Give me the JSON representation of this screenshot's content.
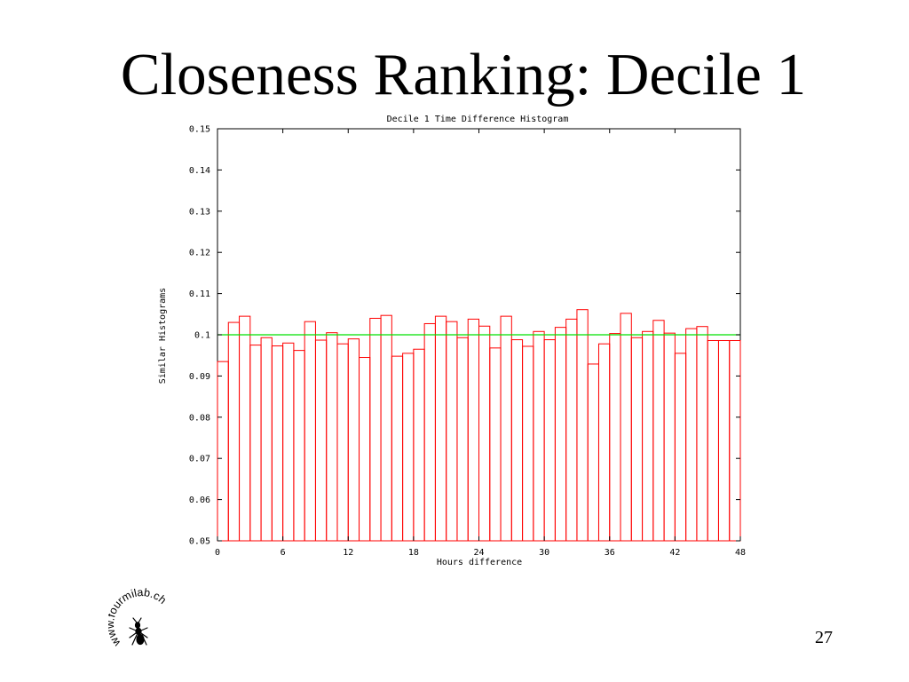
{
  "slide": {
    "title": "Closeness Ranking: Decile 1",
    "page_number": "27",
    "logo_text": "www.fourmilab.ch"
  },
  "chart_data": {
    "type": "bar",
    "title": "Decile 1 Time Difference Histogram",
    "xlabel": "Hours difference",
    "ylabel": "Similar Histograms",
    "xlim": [
      0,
      48
    ],
    "ylim": [
      0.05,
      0.15
    ],
    "x_ticks": [
      0,
      6,
      12,
      18,
      24,
      30,
      36,
      42,
      48
    ],
    "x_tick_labels": [
      "0",
      "6",
      "12",
      "18",
      "24",
      "30",
      "36",
      "42",
      "48"
    ],
    "y_ticks": [
      0.05,
      0.06,
      0.07,
      0.08,
      0.09,
      0.1,
      0.11,
      0.12,
      0.13,
      0.14,
      0.15
    ],
    "y_tick_labels": [
      "0.05",
      "0.06",
      "0.07",
      "0.08",
      "0.09",
      "0.1",
      "0.11",
      "0.12",
      "0.13",
      "0.14",
      "0.15"
    ],
    "bin_width": 1,
    "bins_start": [
      0,
      1,
      2,
      3,
      4,
      5,
      6,
      7,
      8,
      9,
      10,
      11,
      12,
      13,
      14,
      15,
      16,
      17,
      18,
      19,
      20,
      21,
      22,
      23,
      24,
      25,
      26,
      27,
      28,
      29,
      30,
      31,
      32,
      33,
      34,
      35,
      36,
      37,
      38,
      39,
      40,
      41,
      42,
      43,
      44,
      45,
      46,
      47
    ],
    "values": [
      0.0935,
      0.103,
      0.1045,
      0.0975,
      0.0993,
      0.0973,
      0.098,
      0.0962,
      0.1032,
      0.0987,
      0.1005,
      0.0978,
      0.099,
      0.0945,
      0.104,
      0.1047,
      0.0948,
      0.0955,
      0.0965,
      0.1027,
      0.1045,
      0.1032,
      0.0993,
      0.1038,
      0.1021,
      0.0968,
      0.1045,
      0.0988,
      0.0972,
      0.1008,
      0.0988,
      0.1018,
      0.1038,
      0.1061,
      0.0929,
      0.0978,
      0.1003,
      0.1052,
      0.0993,
      0.1008,
      0.1035,
      0.1004,
      0.0955,
      0.1015,
      0.102,
      0.0986,
      0.0986,
      0.0986
    ],
    "reference_line": 0.1,
    "colors": {
      "bars": "#ff0000",
      "reference_line": "#00e000",
      "axes": "#000000"
    },
    "grid": false
  }
}
